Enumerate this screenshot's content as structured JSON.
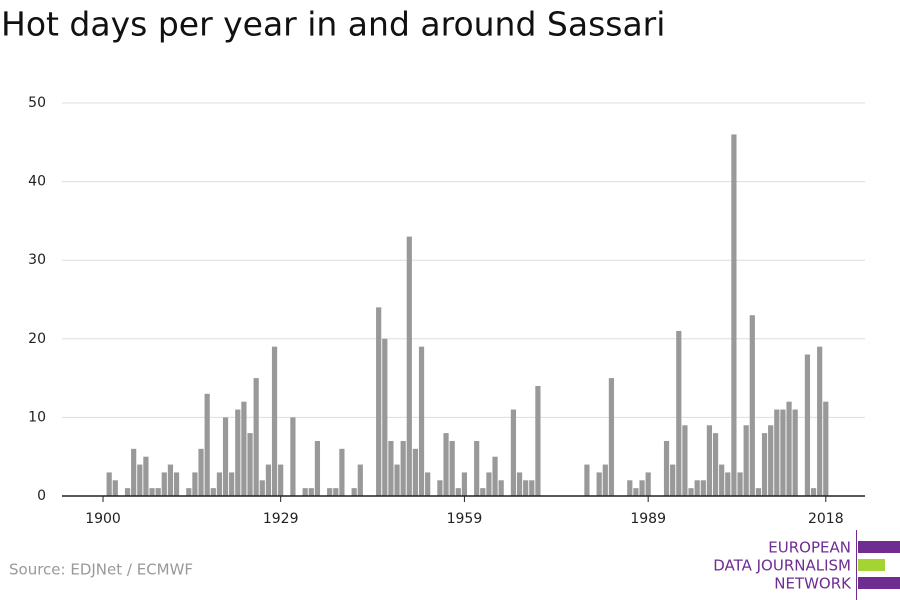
{
  "chart_data": {
    "type": "bar",
    "title": "Hot days per year in and around Sassari",
    "source": "Source: EDJNet / ECMWF",
    "logo": [
      "EUROPEAN",
      "DATA JOURNALISM",
      "NETWORK"
    ],
    "x": [
      1900,
      1901,
      1902,
      1903,
      1904,
      1905,
      1906,
      1907,
      1908,
      1909,
      1910,
      1911,
      1912,
      1913,
      1914,
      1915,
      1916,
      1917,
      1918,
      1919,
      1920,
      1921,
      1922,
      1923,
      1924,
      1925,
      1926,
      1927,
      1928,
      1929,
      1930,
      1931,
      1932,
      1933,
      1934,
      1935,
      1936,
      1937,
      1938,
      1939,
      1940,
      1941,
      1942,
      1943,
      1944,
      1945,
      1946,
      1947,
      1948,
      1949,
      1950,
      1951,
      1952,
      1953,
      1954,
      1955,
      1956,
      1957,
      1958,
      1959,
      1960,
      1961,
      1962,
      1963,
      1964,
      1965,
      1966,
      1967,
      1968,
      1969,
      1970,
      1971,
      1972,
      1973,
      1974,
      1975,
      1976,
      1977,
      1978,
      1979,
      1980,
      1981,
      1982,
      1983,
      1984,
      1985,
      1986,
      1987,
      1988,
      1989,
      1990,
      1991,
      1992,
      1993,
      1994,
      1995,
      1996,
      1997,
      1998,
      1999,
      2000,
      2001,
      2002,
      2003,
      2004,
      2005,
      2006,
      2007,
      2008,
      2009,
      2010,
      2011,
      2012,
      2013,
      2014,
      2015,
      2016,
      2017,
      2018
    ],
    "values": [
      0,
      3,
      2,
      0,
      1,
      6,
      4,
      5,
      1,
      1,
      3,
      4,
      3,
      0,
      1,
      3,
      6,
      13,
      1,
      3,
      10,
      3,
      11,
      12,
      8,
      15,
      2,
      4,
      19,
      4,
      0,
      10,
      0,
      1,
      1,
      7,
      0,
      1,
      1,
      6,
      0,
      1,
      4,
      0,
      0,
      24,
      20,
      7,
      4,
      7,
      33,
      6,
      19,
      3,
      0,
      2,
      8,
      7,
      1,
      3,
      0,
      7,
      1,
      3,
      5,
      2,
      0,
      11,
      3,
      2,
      2,
      14,
      0,
      0,
      0,
      0,
      0,
      0,
      0,
      4,
      0,
      3,
      4,
      15,
      0,
      0,
      2,
      1,
      2,
      3,
      0,
      0,
      7,
      4,
      21,
      9,
      1,
      2,
      2,
      9,
      8,
      4,
      3,
      46,
      3,
      9,
      23,
      1,
      8,
      9,
      11,
      11,
      12,
      11,
      0,
      18,
      1,
      19,
      12
    ],
    "color": "#999999",
    "xlim": [
      1893.3,
      2024.4
    ],
    "xticks": [
      1900,
      1929,
      1959,
      1989,
      2018
    ],
    "ylim": [
      0,
      50
    ],
    "yticks": [
      0,
      10,
      20,
      30,
      40,
      50
    ],
    "grid": true
  }
}
